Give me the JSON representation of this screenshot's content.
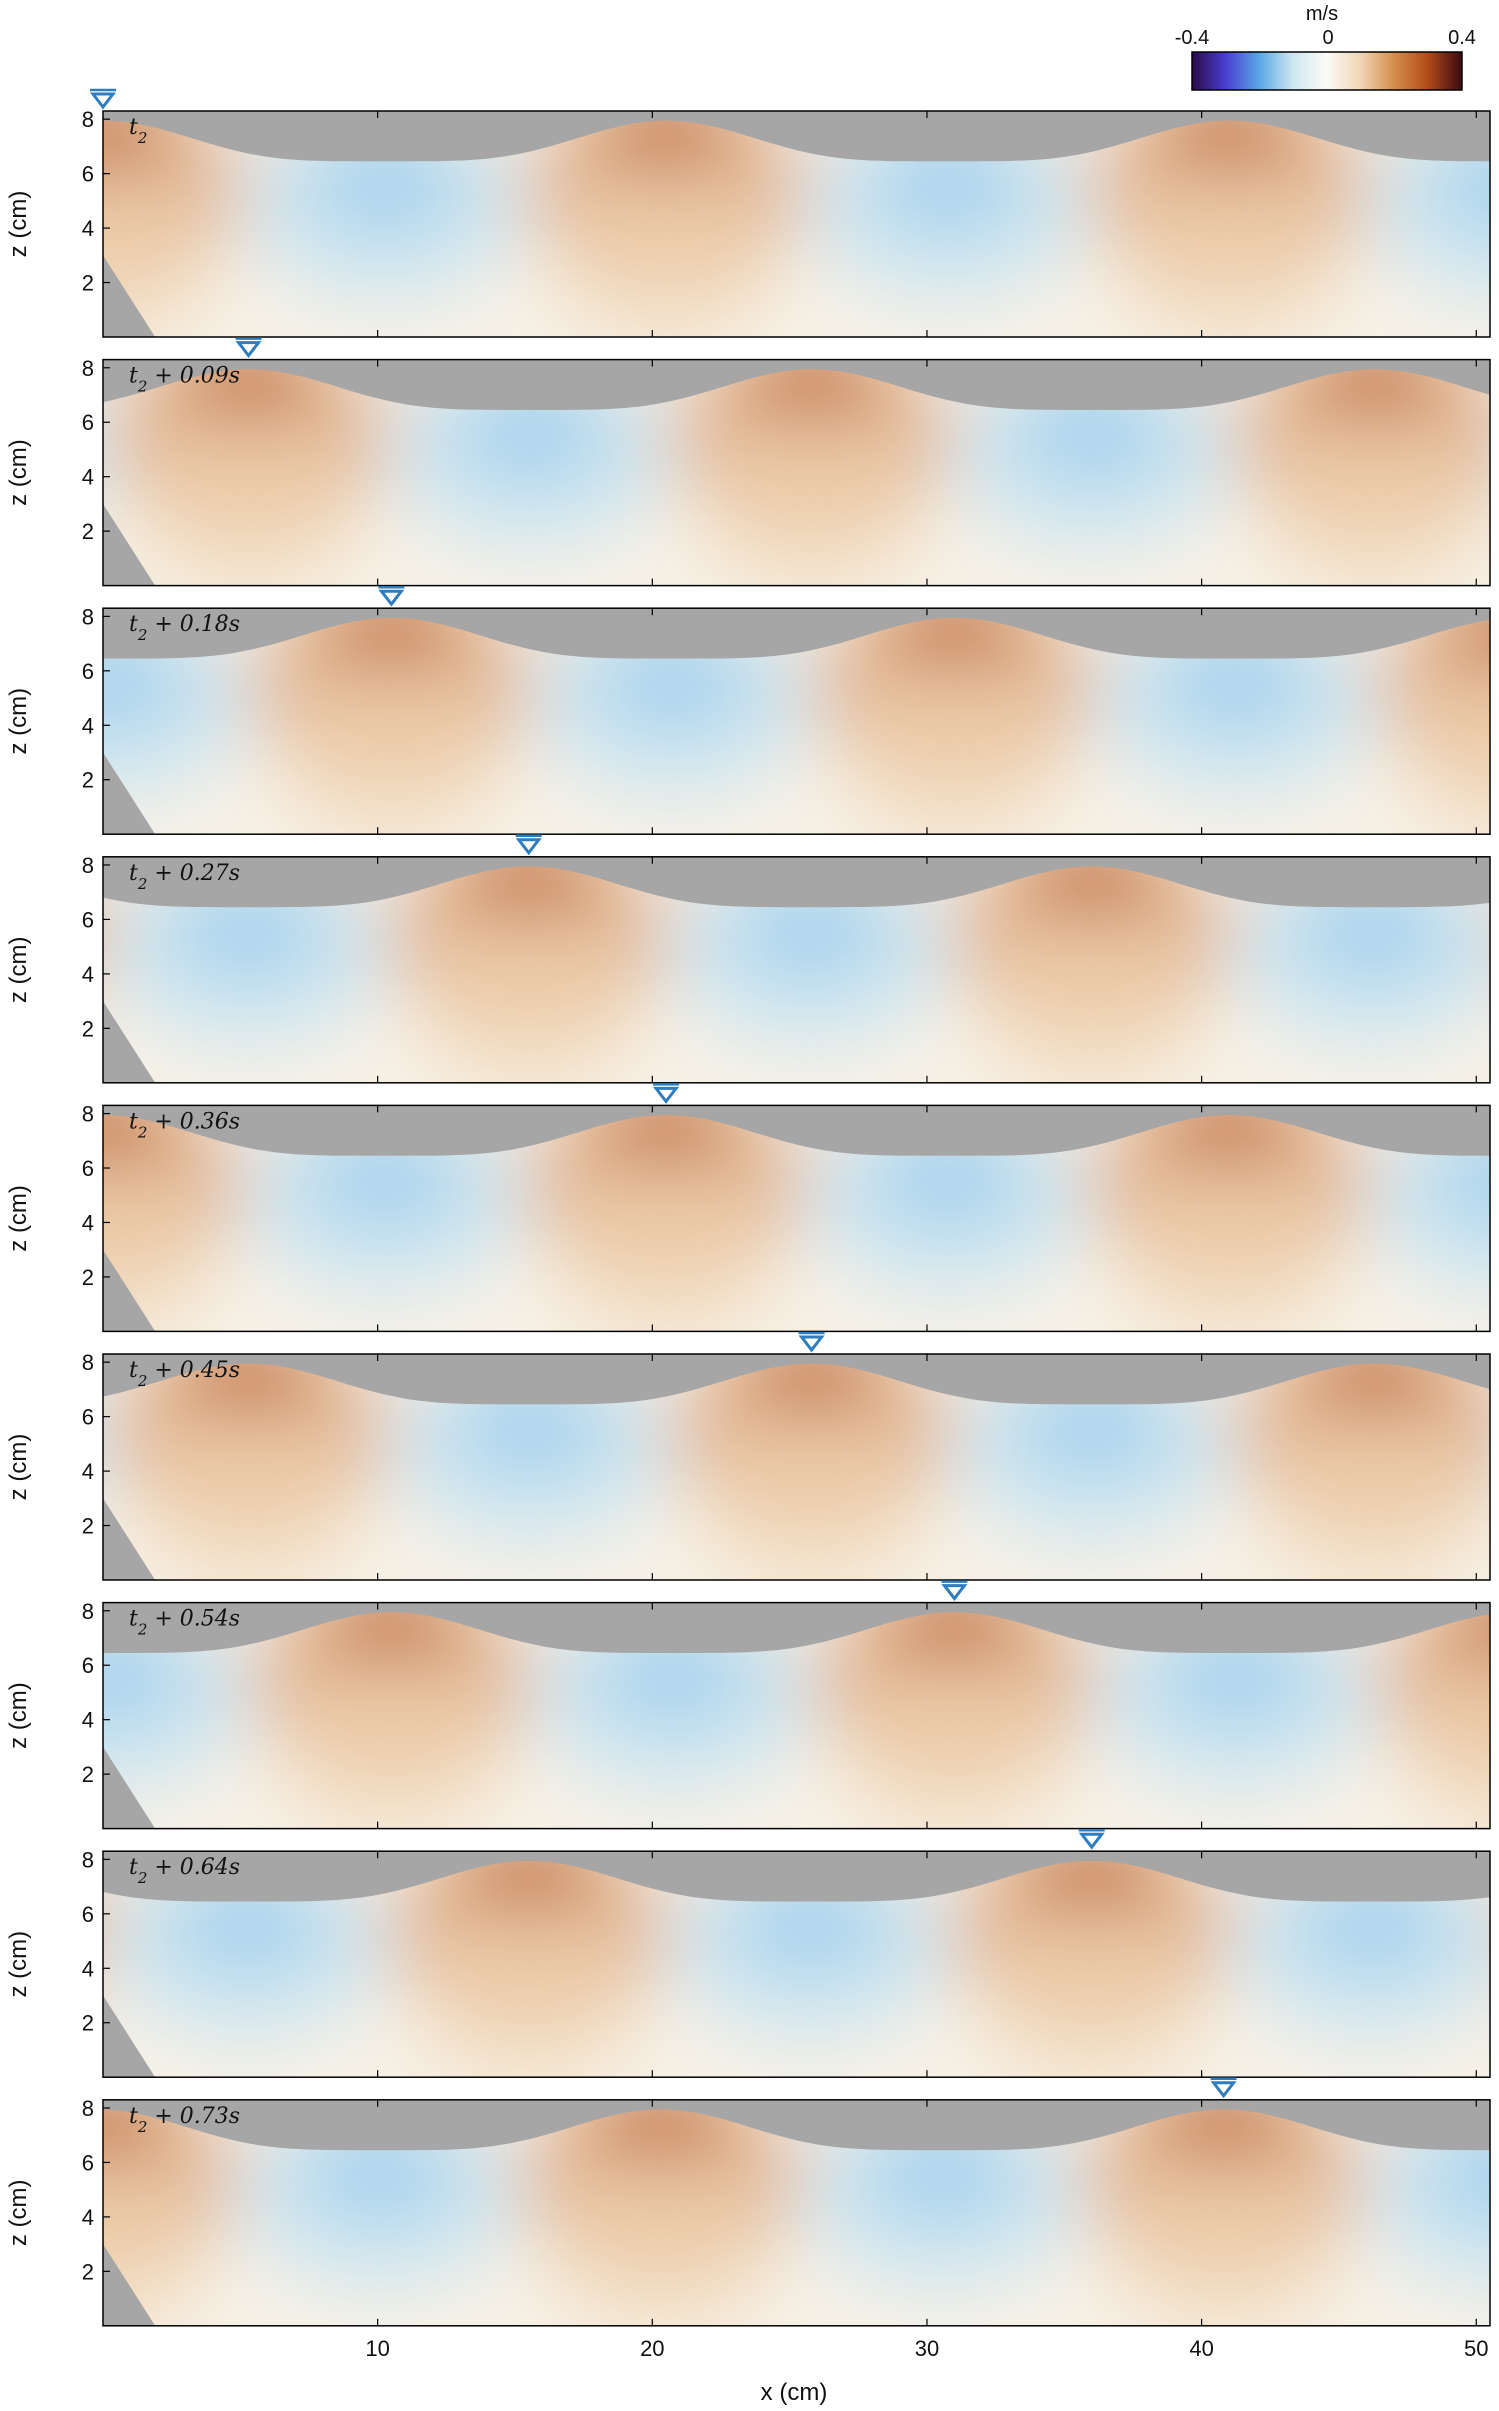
{
  "chart_data": {
    "type": "heatmap",
    "title": "",
    "xlabel": "x (cm)",
    "ylabel": "z (cm)",
    "xlim": [
      0,
      50.5
    ],
    "ylim": [
      0,
      8.3
    ],
    "x_ticks": [
      10,
      20,
      30,
      40,
      50
    ],
    "y_ticks": [
      2,
      4,
      6,
      8
    ],
    "colorbar": {
      "unit": "m/s",
      "range": [
        -0.4,
        0.4
      ],
      "tick_labels": [
        "-0.4",
        "0",
        "0.4"
      ],
      "colormap": [
        "#2a0a4a",
        "#4a3fd0",
        "#5aa8e6",
        "#cfe7f1",
        "#fbfbf7",
        "#f0d5b4",
        "#d58d4c",
        "#b04a18",
        "#3a0a10"
      ]
    },
    "colors": {
      "background_gray": "#a6a6a6",
      "water": "#f7f1e6",
      "marker": "#2f7dbf"
    },
    "panels": [
      {
        "label_base": "t",
        "label_sub": "2",
        "label_suffix": "",
        "crest_x": 0.0
      },
      {
        "label_base": "t",
        "label_sub": "2",
        "label_suffix": " + 0.09s",
        "crest_x": 5.3
      },
      {
        "label_base": "t",
        "label_sub": "2",
        "label_suffix": " + 0.18s",
        "crest_x": 10.5
      },
      {
        "label_base": "t",
        "label_sub": "2",
        "label_suffix": " + 0.27s",
        "crest_x": 15.5
      },
      {
        "label_base": "t",
        "label_sub": "2",
        "label_suffix": " + 0.36s",
        "crest_x": 20.5
      },
      {
        "label_base": "t",
        "label_sub": "2",
        "label_suffix": " + 0.45s",
        "crest_x": 25.8
      },
      {
        "label_base": "t",
        "label_sub": "2",
        "label_suffix": " + 0.54s",
        "crest_x": 31.0
      },
      {
        "label_base": "t",
        "label_sub": "2",
        "label_suffix": " + 0.64s",
        "crest_x": 36.0
      },
      {
        "label_base": "t",
        "label_sub": "2",
        "label_suffix": " + 0.73s",
        "crest_x": 40.8
      }
    ]
  }
}
